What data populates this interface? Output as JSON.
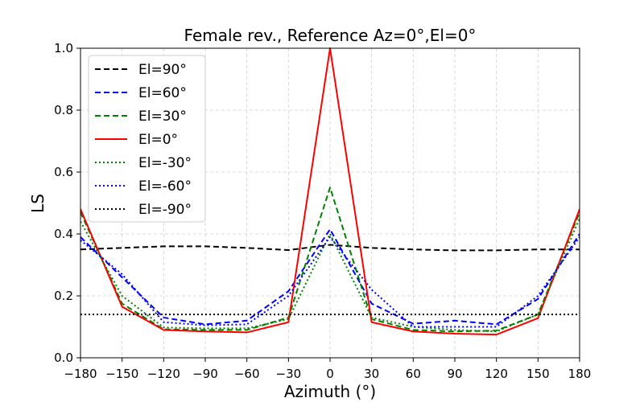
{
  "chart_data": {
    "type": "line",
    "title": "Female rev., Reference Az=0°,El=0°",
    "xlabel": "Azimuth (°)",
    "ylabel": "LS",
    "xlim": [
      -180,
      180
    ],
    "ylim": [
      0,
      1
    ],
    "grid": true,
    "legend_position": "top-left",
    "x": [
      -180,
      -150,
      -120,
      -90,
      -60,
      -30,
      0,
      30,
      60,
      90,
      120,
      150,
      180
    ],
    "x_tick_labels": [
      "−180",
      "−150",
      "−120",
      "−90",
      "−60",
      "−30",
      "0",
      "30",
      "60",
      "90",
      "120",
      "150",
      "180"
    ],
    "y_ticks": [
      0.0,
      0.2,
      0.4,
      0.6,
      0.8,
      1.0
    ],
    "y_tick_labels": [
      "0.0",
      "0.2",
      "0.4",
      "0.6",
      "0.8",
      "1.0"
    ],
    "series": [
      {
        "name": "El=90°",
        "color": "#000000",
        "style": "dashed",
        "values": [
          0.35,
          0.355,
          0.36,
          0.36,
          0.355,
          0.348,
          0.365,
          0.355,
          0.35,
          0.347,
          0.347,
          0.35,
          0.35
        ]
      },
      {
        "name": "El=60°",
        "color": "#0000ff",
        "style": "dashed",
        "values": [
          0.39,
          0.26,
          0.13,
          0.108,
          0.12,
          0.215,
          0.415,
          0.175,
          0.11,
          0.12,
          0.108,
          0.19,
          0.4
        ]
      },
      {
        "name": "El=30°",
        "color": "#008000",
        "style": "dashed",
        "values": [
          0.47,
          0.175,
          0.092,
          0.09,
          0.09,
          0.13,
          0.55,
          0.125,
          0.09,
          0.085,
          0.088,
          0.14,
          0.47
        ]
      },
      {
        "name": "El=0°",
        "color": "#ff0000",
        "style": "solid",
        "values": [
          0.48,
          0.165,
          0.09,
          0.085,
          0.082,
          0.115,
          1.0,
          0.115,
          0.085,
          0.078,
          0.075,
          0.128,
          0.48
        ]
      },
      {
        "name": "El=-30°",
        "color": "#008000",
        "style": "dotted",
        "values": [
          0.44,
          0.2,
          0.098,
          0.095,
          0.095,
          0.125,
          0.4,
          0.13,
          0.1,
          0.09,
          0.085,
          0.14,
          0.45
        ]
      },
      {
        "name": "El=-60°",
        "color": "#0000ff",
        "style": "dotted",
        "values": [
          0.38,
          0.27,
          0.115,
          0.105,
          0.108,
          0.2,
          0.39,
          0.22,
          0.1,
          0.1,
          0.1,
          0.2,
          0.39
        ]
      },
      {
        "name": "El=-90°",
        "color": "#000000",
        "style": "dotted",
        "values": [
          0.14,
          0.14,
          0.14,
          0.14,
          0.14,
          0.14,
          0.14,
          0.14,
          0.14,
          0.14,
          0.14,
          0.14,
          0.14
        ]
      }
    ]
  }
}
